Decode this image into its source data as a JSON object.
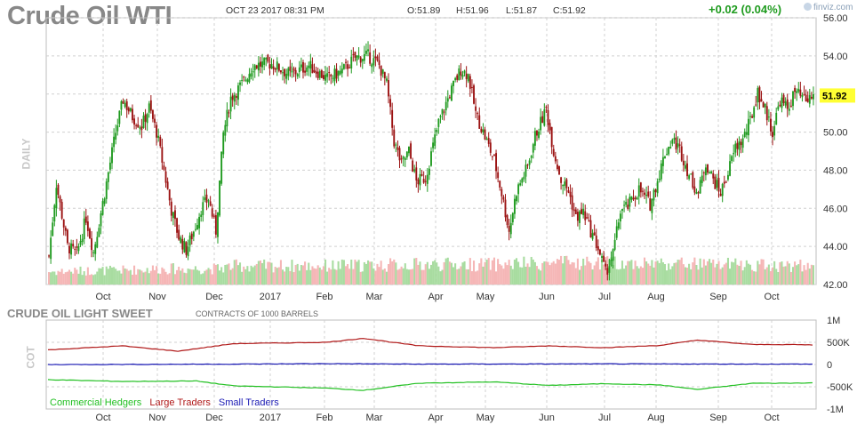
{
  "header": {
    "title": "Crude Oil WTI",
    "datetime": "OCT 23 2017 08:31 PM",
    "open": "O:51.89",
    "high": "H:51.96",
    "low": "L:51.87",
    "close": "C:51.92",
    "change": "+0.02 (0.04%)",
    "brand": "finviz.com"
  },
  "price_panel": {
    "side_label": "DAILY",
    "last_price_label": "51.92"
  },
  "cot_panel": {
    "title": "CRUDE OIL LIGHT SWEET",
    "subtitle": "CONTRACTS OF 1000 BARRELS",
    "side_label": "COT"
  },
  "colors": {
    "up": "#1f9a1f",
    "down": "#9b1212",
    "volume_up": "#a8dca0",
    "volume_down": "#f5b6b6",
    "commercial": "#22c022",
    "large": "#b01818",
    "small": "#1a1ab4",
    "grid": "#d0d0d0",
    "last_price_bg": "#ffff33"
  },
  "chart_data": [
    {
      "type": "candlestick",
      "title": "Crude Oil WTI",
      "ylabel": "",
      "ylim": [
        42,
        56
      ],
      "y_ticks": [
        "42.00",
        "44.00",
        "46.00",
        "48.00",
        "50.00",
        "52.00",
        "54.00",
        "56.00"
      ],
      "x_tick_labels": [
        "Oct",
        "Nov",
        "Dec",
        "2017",
        "Feb",
        "Mar",
        "Apr",
        "May",
        "Jun",
        "Jul",
        "Aug",
        "Sep",
        "Oct"
      ],
      "last_value": 51.92,
      "close_path": [
        [
          0,
          43.5
        ],
        [
          4,
          47.3
        ],
        [
          10,
          44.0
        ],
        [
          15,
          43.6
        ],
        [
          20,
          45.5
        ],
        [
          24,
          43.7
        ],
        [
          30,
          46.8
        ],
        [
          36,
          50.0
        ],
        [
          40,
          51.7
        ],
        [
          45,
          50.8
        ],
        [
          50,
          50.3
        ],
        [
          54,
          51.3
        ],
        [
          58,
          50.0
        ],
        [
          62,
          48.0
        ],
        [
          66,
          45.9
        ],
        [
          70,
          44.5
        ],
        [
          74,
          43.8
        ],
        [
          78,
          44.8
        ],
        [
          82,
          46.0
        ],
        [
          86,
          46.5
        ],
        [
          90,
          44.8
        ],
        [
          94,
          49.9
        ],
        [
          98,
          51.8
        ],
        [
          104,
          52.5
        ],
        [
          110,
          53.5
        ],
        [
          120,
          53.6
        ],
        [
          130,
          53.0
        ],
        [
          140,
          53.5
        ],
        [
          150,
          52.8
        ],
        [
          158,
          53.2
        ],
        [
          165,
          53.9
        ],
        [
          172,
          54.0
        ],
        [
          178,
          53.5
        ],
        [
          182,
          52.5
        ],
        [
          186,
          49.5
        ],
        [
          190,
          48.3
        ],
        [
          194,
          49.0
        ],
        [
          198,
          47.4
        ],
        [
          203,
          47.6
        ],
        [
          210,
          50.5
        ],
        [
          216,
          52.0
        ],
        [
          222,
          53.3
        ],
        [
          226,
          53.0
        ],
        [
          230,
          51.0
        ],
        [
          236,
          49.5
        ],
        [
          240,
          48.5
        ],
        [
          244,
          46.8
        ],
        [
          248,
          44.8
        ],
        [
          252,
          46.9
        ],
        [
          258,
          48.2
        ],
        [
          262,
          49.8
        ],
        [
          268,
          51.2
        ],
        [
          272,
          49.0
        ],
        [
          276,
          47.5
        ],
        [
          280,
          46.9
        ],
        [
          284,
          45.5
        ],
        [
          288,
          45.8
        ],
        [
          292,
          44.8
        ],
        [
          296,
          43.9
        ],
        [
          300,
          42.6
        ],
        [
          304,
          43.6
        ],
        [
          308,
          45.9
        ],
        [
          312,
          46.1
        ],
        [
          318,
          47.0
        ],
        [
          324,
          46.2
        ],
        [
          328,
          47.5
        ],
        [
          332,
          48.9
        ],
        [
          336,
          49.6
        ],
        [
          340,
          49.1
        ],
        [
          346,
          47.5
        ],
        [
          350,
          46.8
        ],
        [
          354,
          48.4
        ],
        [
          358,
          47.5
        ],
        [
          362,
          46.8
        ],
        [
          366,
          47.9
        ],
        [
          370,
          49.2
        ],
        [
          374,
          49.6
        ],
        [
          378,
          50.6
        ],
        [
          382,
          52.1
        ],
        [
          386,
          51.2
        ],
        [
          390,
          50.0
        ],
        [
          394,
          51.7
        ],
        [
          398,
          51.2
        ],
        [
          402,
          52.1
        ],
        [
          408,
          51.6
        ],
        [
          412,
          51.92
        ]
      ],
      "volume_path": [
        [
          0,
          0.45
        ],
        [
          40,
          0.5
        ],
        [
          60,
          0.55
        ],
        [
          90,
          0.55
        ],
        [
          100,
          0.65
        ],
        [
          150,
          0.65
        ],
        [
          200,
          0.7
        ],
        [
          240,
          0.7
        ],
        [
          280,
          0.75
        ],
        [
          320,
          0.75
        ],
        [
          360,
          0.7
        ],
        [
          412,
          0.65
        ]
      ]
    },
    {
      "type": "line",
      "title": "CRUDE OIL LIGHT SWEET",
      "subtitle": "CONTRACTS OF 1000 BARRELS",
      "ylim": [
        -1000,
        1000
      ],
      "y_ticks": [
        "1M",
        "500K",
        "0",
        "-500K",
        "-1M"
      ],
      "x_tick_labels": [
        "Oct",
        "Nov",
        "Dec",
        "2017",
        "Feb",
        "Mar",
        "Apr",
        "May",
        "Jun",
        "Jul",
        "Aug",
        "Sep",
        "Oct"
      ],
      "series": [
        {
          "name": "Commercial Hedgers",
          "color": "#22c022",
          "points": [
            [
              0,
              -340
            ],
            [
              40,
              -380
            ],
            [
              80,
              -370
            ],
            [
              100,
              -480
            ],
            [
              150,
              -530
            ],
            [
              170,
              -580
            ],
            [
              200,
              -420
            ],
            [
              240,
              -390
            ],
            [
              270,
              -470
            ],
            [
              300,
              -430
            ],
            [
              330,
              -460
            ],
            [
              350,
              -560
            ],
            [
              380,
              -420
            ],
            [
              400,
              -420
            ],
            [
              412,
              -410
            ]
          ]
        },
        {
          "name": "Large Traders",
          "color": "#b01818",
          "points": [
            [
              0,
              330
            ],
            [
              40,
              420
            ],
            [
              70,
              300
            ],
            [
              100,
              470
            ],
            [
              150,
              500
            ],
            [
              170,
              590
            ],
            [
              200,
              420
            ],
            [
              240,
              380
            ],
            [
              270,
              420
            ],
            [
              300,
              380
            ],
            [
              330,
              430
            ],
            [
              350,
              550
            ],
            [
              380,
              450
            ],
            [
              400,
              450
            ],
            [
              412,
              440
            ]
          ]
        },
        {
          "name": "Small Traders",
          "color": "#1a1ab4",
          "points": [
            [
              0,
              0
            ],
            [
              100,
              10
            ],
            [
              150,
              20
            ],
            [
              200,
              10
            ],
            [
              300,
              15
            ],
            [
              412,
              10
            ]
          ]
        }
      ]
    }
  ]
}
